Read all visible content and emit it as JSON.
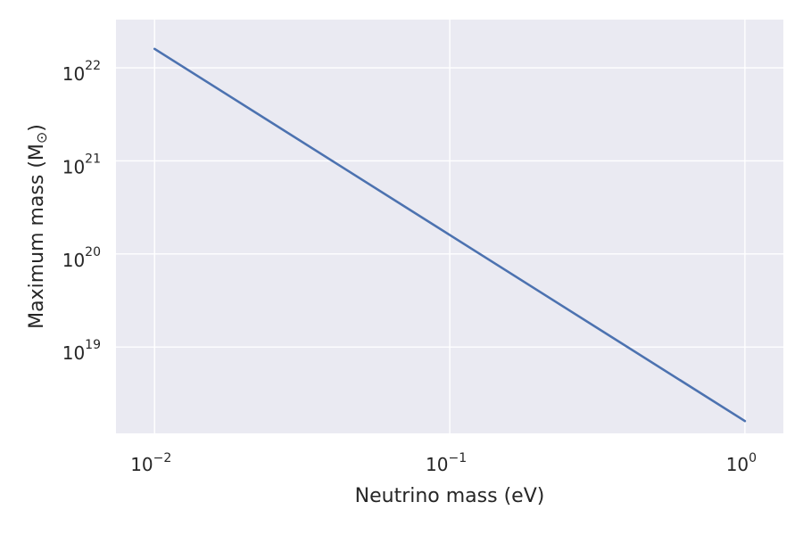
{
  "chart_data": {
    "type": "line",
    "xlabel": "Neutrino mass (eV)",
    "ylabel_main": "Maximum mass (M",
    "ylabel_symbol": "⊙",
    "ylabel_close": ")",
    "xscale": "log",
    "yscale": "log",
    "xlim": [
      0.0074,
      1.35
    ],
    "ylim": [
      1.18e+18,
      3.3e+22
    ],
    "grid": true,
    "background": "#eaeaf2",
    "x_ticks": [
      {
        "value": 0.01,
        "base": "10",
        "exp": "−2"
      },
      {
        "value": 0.1,
        "base": "10",
        "exp": "−1"
      },
      {
        "value": 1,
        "base": "10",
        "exp": "0"
      }
    ],
    "y_ticks": [
      {
        "value": 1e+19,
        "base": "10",
        "exp": "19"
      },
      {
        "value": 1e+20,
        "base": "10",
        "exp": "20"
      },
      {
        "value": 1e+21,
        "base": "10",
        "exp": "21"
      },
      {
        "value": 1e+22,
        "base": "10",
        "exp": "22"
      }
    ],
    "series": [
      {
        "color": "#4c72b0",
        "x": [
          0.01,
          1
        ],
        "y": [
          1.6e+22,
          1.6e+18
        ]
      }
    ]
  }
}
